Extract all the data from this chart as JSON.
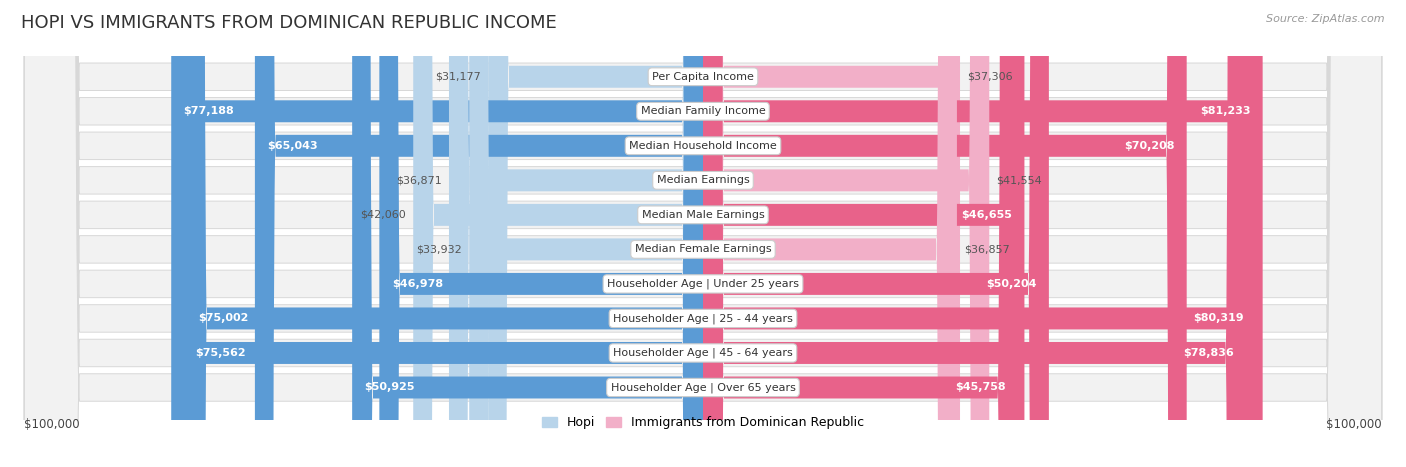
{
  "title": "HOPI VS IMMIGRANTS FROM DOMINICAN REPUBLIC INCOME",
  "source": "Source: ZipAtlas.com",
  "categories": [
    "Per Capita Income",
    "Median Family Income",
    "Median Household Income",
    "Median Earnings",
    "Median Male Earnings",
    "Median Female Earnings",
    "Householder Age | Under 25 years",
    "Householder Age | 25 - 44 years",
    "Householder Age | 45 - 64 years",
    "Householder Age | Over 65 years"
  ],
  "hopi_values": [
    31177,
    77188,
    65043,
    36871,
    42060,
    33932,
    46978,
    75002,
    75562,
    50925
  ],
  "immigrant_values": [
    37306,
    81233,
    70208,
    41554,
    46655,
    36857,
    50204,
    80319,
    78836,
    45758
  ],
  "hopi_labels": [
    "$31,177",
    "$77,188",
    "$65,043",
    "$36,871",
    "$42,060",
    "$33,932",
    "$46,978",
    "$75,002",
    "$75,562",
    "$50,925"
  ],
  "immigrant_labels": [
    "$37,306",
    "$81,233",
    "$70,208",
    "$41,554",
    "$46,655",
    "$36,857",
    "$50,204",
    "$80,319",
    "$78,836",
    "$45,758"
  ],
  "max_value": 100000,
  "hopi_color_dark": "#5b9bd5",
  "hopi_color_light": "#b8d4ea",
  "immigrant_color_dark": "#e8628a",
  "immigrant_color_light": "#f2afc8",
  "label_color_inside": "#ffffff",
  "label_color_outside": "#555555",
  "background_color": "#ffffff",
  "row_bg_color": "#f2f2f2",
  "row_border_color": "#d8d8d8",
  "title_fontsize": 13,
  "label_fontsize": 8,
  "value_fontsize": 8,
  "legend_label_hopi": "Hopi",
  "legend_label_immigrant": "Immigrants from Dominican Republic",
  "xlabel_left": "$100,000",
  "xlabel_right": "$100,000",
  "inside_threshold": 45000
}
